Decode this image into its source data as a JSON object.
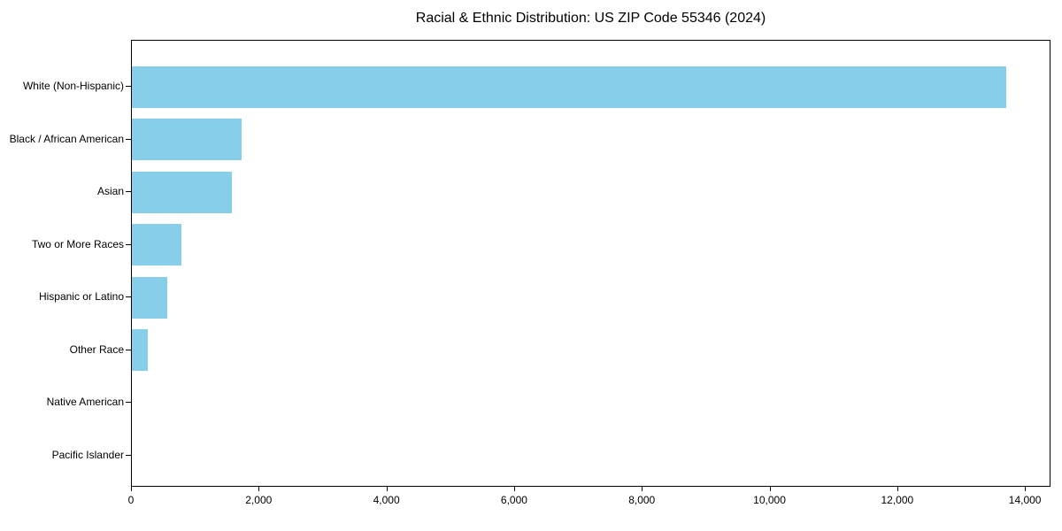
{
  "chart_data": {
    "type": "bar",
    "orientation": "horizontal",
    "title": "Racial & Ethnic Distribution: US ZIP Code 55346 (2024)",
    "categories": [
      "White (Non-Hispanic)",
      "Black / African American",
      "Asian",
      "Two or More Races",
      "Hispanic or Latino",
      "Other Race",
      "Native American",
      "Pacific Islander"
    ],
    "values": [
      13700,
      1720,
      1565,
      775,
      555,
      250,
      0,
      0
    ],
    "xlabel": "",
    "ylabel": "",
    "xlim": [
      0,
      14400
    ],
    "xticks": [
      0,
      2000,
      4000,
      6000,
      8000,
      10000,
      12000,
      14000
    ],
    "xtick_labels": [
      "0",
      "2,000",
      "4,000",
      "6,000",
      "8,000",
      "10,000",
      "12,000",
      "14,000"
    ],
    "bar_color": "#87CEEB",
    "spine_color": "#000000",
    "text_color": "#000000",
    "background_color": "#ffffff",
    "grid": false,
    "legend": null
  }
}
